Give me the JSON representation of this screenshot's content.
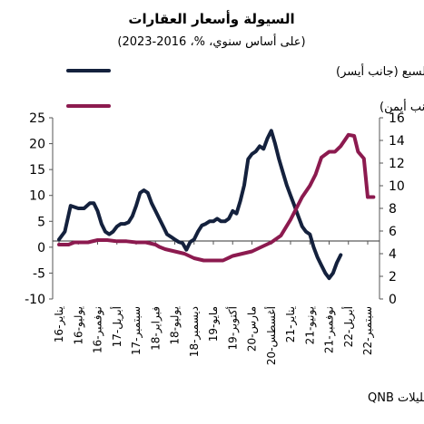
{
  "chart_data": {
    "type": "line",
    "title": "السيولة وأسعار العقارات",
    "subtitle": "(على أساس سنوي، %، 2016-2023)",
    "source": "المصادر: هيفر، بنك التسويات الدولية، تحليلات QNB",
    "y_left": {
      "ticks": [
        25,
        20,
        15,
        10,
        5,
        0,
        -5,
        -10
      ],
      "range": [
        -10,
        25
      ]
    },
    "y_right": {
      "ticks": [
        16,
        14,
        12,
        10,
        8,
        6,
        4,
        2,
        0
      ],
      "range": [
        0,
        16
      ]
    },
    "x_tick_labels": [
      "يناير-16",
      "يوليو-16",
      "نوفمبر-16",
      "أبريل-17",
      "سبتمبر-17",
      "فبراير-18",
      "يوليو-18",
      "ديسمبر-18",
      "مايو-19",
      "أكتوبر-19",
      "مارس-20",
      "أغسطس-20",
      "يناير-21",
      "يونيو-21",
      "نوفمبر-21",
      "أبريل-22",
      "سبتمبر-22"
    ],
    "series": [
      {
        "name": "إمدادات النقد في مجموعة السبع (جانب أيسر)",
        "axis": "left",
        "color": "#14213d",
        "points": [
          [
            0,
            1.5
          ],
          [
            0.3,
            3
          ],
          [
            0.6,
            8
          ],
          [
            1,
            7.5
          ],
          [
            1.3,
            7.5
          ],
          [
            1.6,
            8.5
          ],
          [
            1.8,
            8.5
          ],
          [
            2,
            7
          ],
          [
            2.2,
            4.5
          ],
          [
            2.4,
            3
          ],
          [
            2.6,
            2.5
          ],
          [
            2.8,
            3
          ],
          [
            3,
            4
          ],
          [
            3.2,
            4.5
          ],
          [
            3.4,
            4.5
          ],
          [
            3.6,
            4.8
          ],
          [
            3.8,
            6
          ],
          [
            4,
            8
          ],
          [
            4.2,
            10.5
          ],
          [
            4.4,
            11
          ],
          [
            4.6,
            10.5
          ],
          [
            4.8,
            8.5
          ],
          [
            5,
            7
          ],
          [
            5.2,
            5.5
          ],
          [
            5.4,
            4
          ],
          [
            5.6,
            2.5
          ],
          [
            5.8,
            2
          ],
          [
            6,
            1.5
          ],
          [
            6.2,
            1
          ],
          [
            6.4,
            0.8
          ],
          [
            6.6,
            -0.5
          ],
          [
            6.8,
            1
          ],
          [
            7,
            1.5
          ],
          [
            7.2,
            3
          ],
          [
            7.4,
            4.2
          ],
          [
            7.6,
            4.5
          ],
          [
            7.8,
            5
          ],
          [
            8,
            5
          ],
          [
            8.2,
            5.5
          ],
          [
            8.4,
            5
          ],
          [
            8.6,
            5
          ],
          [
            8.8,
            5.5
          ],
          [
            9,
            7
          ],
          [
            9.2,
            6.5
          ],
          [
            9.4,
            9
          ],
          [
            9.6,
            12
          ],
          [
            9.8,
            17
          ],
          [
            10,
            18
          ],
          [
            10.2,
            18.5
          ],
          [
            10.4,
            19.5
          ],
          [
            10.6,
            19
          ],
          [
            10.8,
            21
          ],
          [
            11,
            22.5
          ],
          [
            11.2,
            20
          ],
          [
            11.4,
            17
          ],
          [
            11.6,
            14.5
          ],
          [
            11.8,
            12
          ],
          [
            12,
            10
          ],
          [
            12.2,
            8
          ],
          [
            12.4,
            6
          ],
          [
            12.6,
            4
          ],
          [
            12.8,
            3
          ],
          [
            13,
            2.5
          ],
          [
            13.2,
            0
          ],
          [
            13.4,
            -2
          ],
          [
            13.6,
            -3.5
          ],
          [
            13.8,
            -5
          ],
          [
            14,
            -6
          ],
          [
            14.2,
            -5
          ],
          [
            14.4,
            -3
          ],
          [
            14.6,
            -1.5
          ]
        ]
      },
      {
        "name": "أسعار العقارات في الاقتصادات المتقدمة (جانب أيمن)",
        "axis": "right",
        "color": "#8c1a4f",
        "points": [
          [
            0,
            4.8
          ],
          [
            0.5,
            4.8
          ],
          [
            0.8,
            5
          ],
          [
            1.5,
            5
          ],
          [
            2,
            5.2
          ],
          [
            2.5,
            5.2
          ],
          [
            3,
            5.1
          ],
          [
            3.5,
            5.1
          ],
          [
            4,
            5
          ],
          [
            4.5,
            5
          ],
          [
            5,
            4.8
          ],
          [
            5.2,
            4.6
          ],
          [
            5.5,
            4.4
          ],
          [
            6,
            4.2
          ],
          [
            6.5,
            4
          ],
          [
            7,
            3.6
          ],
          [
            7.5,
            3.4
          ],
          [
            8,
            3.4
          ],
          [
            8.5,
            3.4
          ],
          [
            9,
            3.8
          ],
          [
            9.5,
            4
          ],
          [
            10,
            4.2
          ],
          [
            10.5,
            4.6
          ],
          [
            11,
            5
          ],
          [
            11.5,
            5.6
          ],
          [
            12,
            7
          ],
          [
            12.3,
            8
          ],
          [
            12.6,
            9
          ],
          [
            13,
            10
          ],
          [
            13.3,
            11
          ],
          [
            13.6,
            12.5
          ],
          [
            14,
            13
          ],
          [
            14.3,
            13
          ],
          [
            14.6,
            13.5
          ],
          [
            15,
            14.5
          ],
          [
            15.3,
            14.4
          ],
          [
            15.5,
            13
          ],
          [
            15.8,
            12.4
          ],
          [
            16,
            9
          ],
          [
            16.3,
            9
          ]
        ]
      }
    ]
  }
}
